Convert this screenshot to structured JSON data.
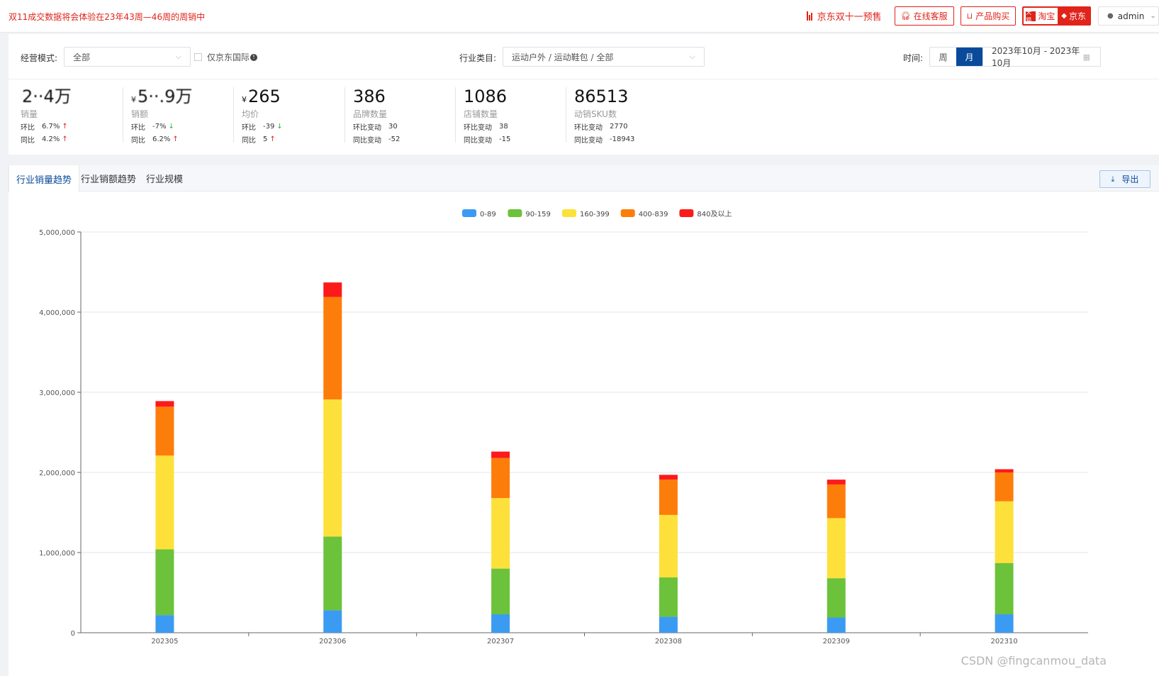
{
  "topbar": {
    "notice": "双11成交数据将会体验在23年43周—46周的周销中",
    "presale_label": "京东双十一预售",
    "service_label": "在线客服",
    "buy_label": "产品购买",
    "taobao_label": "淘宝",
    "tmall_badge": "天猫",
    "jd_label": "京东",
    "user_label": "admin"
  },
  "filters": {
    "mode_label": "经营模式:",
    "mode_value": "全部",
    "intl_only_label": "仅京东国际",
    "category_label": "行业类目:",
    "category_value": "运动户外 / 运动鞋包 / 全部",
    "time_label": "时间:",
    "granularity": [
      "周",
      "月"
    ],
    "granularity_active": "月",
    "date_range": "2023年10月 - 2023年10月"
  },
  "metrics": [
    {
      "value": "2··4万",
      "currency": "",
      "name": "销量",
      "r1_label": "环比",
      "r1_value": "6.7%",
      "r1_dir": "up",
      "r2_label": "同比",
      "r2_value": "4.2%",
      "r2_dir": "up"
    },
    {
      "value": "5··.9万",
      "currency": "¥",
      "name": "销额",
      "r1_label": "环比",
      "r1_value": "-7%",
      "r1_dir": "down",
      "r2_label": "同比",
      "r2_value": "6.2%",
      "r2_dir": "up"
    },
    {
      "value": "265",
      "currency": "¥",
      "name": "均价",
      "r1_label": "环比",
      "r1_value": "-39",
      "r1_dir": "down",
      "r2_label": "同比",
      "r2_value": "5",
      "r2_dir": "up"
    },
    {
      "value": "386",
      "currency": "",
      "name": "品牌数量",
      "r1_label": "环比变动",
      "r1_value": "30",
      "r1_dir": "",
      "r2_label": "同比变动",
      "r2_value": "-52",
      "r2_dir": ""
    },
    {
      "value": "1086",
      "currency": "",
      "name": "店铺数量",
      "r1_label": "环比变动",
      "r1_value": "38",
      "r1_dir": "",
      "r2_label": "同比变动",
      "r2_value": "-15",
      "r2_dir": ""
    },
    {
      "value": "86513",
      "currency": "",
      "name": "动销SKU数",
      "r1_label": "环比变动",
      "r1_value": "2770",
      "r1_dir": "",
      "r2_label": "同比变动",
      "r2_value": "-18943",
      "r2_dir": ""
    }
  ],
  "tabs": [
    "行业销量趋势",
    "行业销额趋势",
    "行业规模"
  ],
  "active_tab": "行业销量趋势",
  "export_label": "导出",
  "watermark": "CSDN @fingcanmou_data",
  "chart_data": {
    "type": "bar",
    "stacked": true,
    "categories": [
      "202305",
      "202306",
      "202307",
      "202308",
      "202309",
      "202310"
    ],
    "series": [
      {
        "name": "0-89",
        "color": "#3b9bf2",
        "values": [
          220000,
          280000,
          230000,
          200000,
          190000,
          230000
        ]
      },
      {
        "name": "90-159",
        "color": "#6cc23a",
        "values": [
          820000,
          920000,
          570000,
          490000,
          490000,
          640000
        ]
      },
      {
        "name": "160-399",
        "color": "#fde13a",
        "values": [
          1170000,
          1710000,
          880000,
          780000,
          750000,
          770000
        ]
      },
      {
        "name": "400-839",
        "color": "#fd7d0b",
        "values": [
          610000,
          1280000,
          500000,
          440000,
          420000,
          360000
        ]
      },
      {
        "name": "840及以上",
        "color": "#fc1a1a",
        "values": [
          70000,
          180000,
          80000,
          60000,
          60000,
          40000
        ]
      }
    ],
    "ylim": [
      0,
      5000000
    ],
    "yticks": [
      "0",
      "1,000,000",
      "2,000,000",
      "3,000,000",
      "4,000,000",
      "5,000,000"
    ],
    "grid": true,
    "legend_position": "top-center"
  }
}
